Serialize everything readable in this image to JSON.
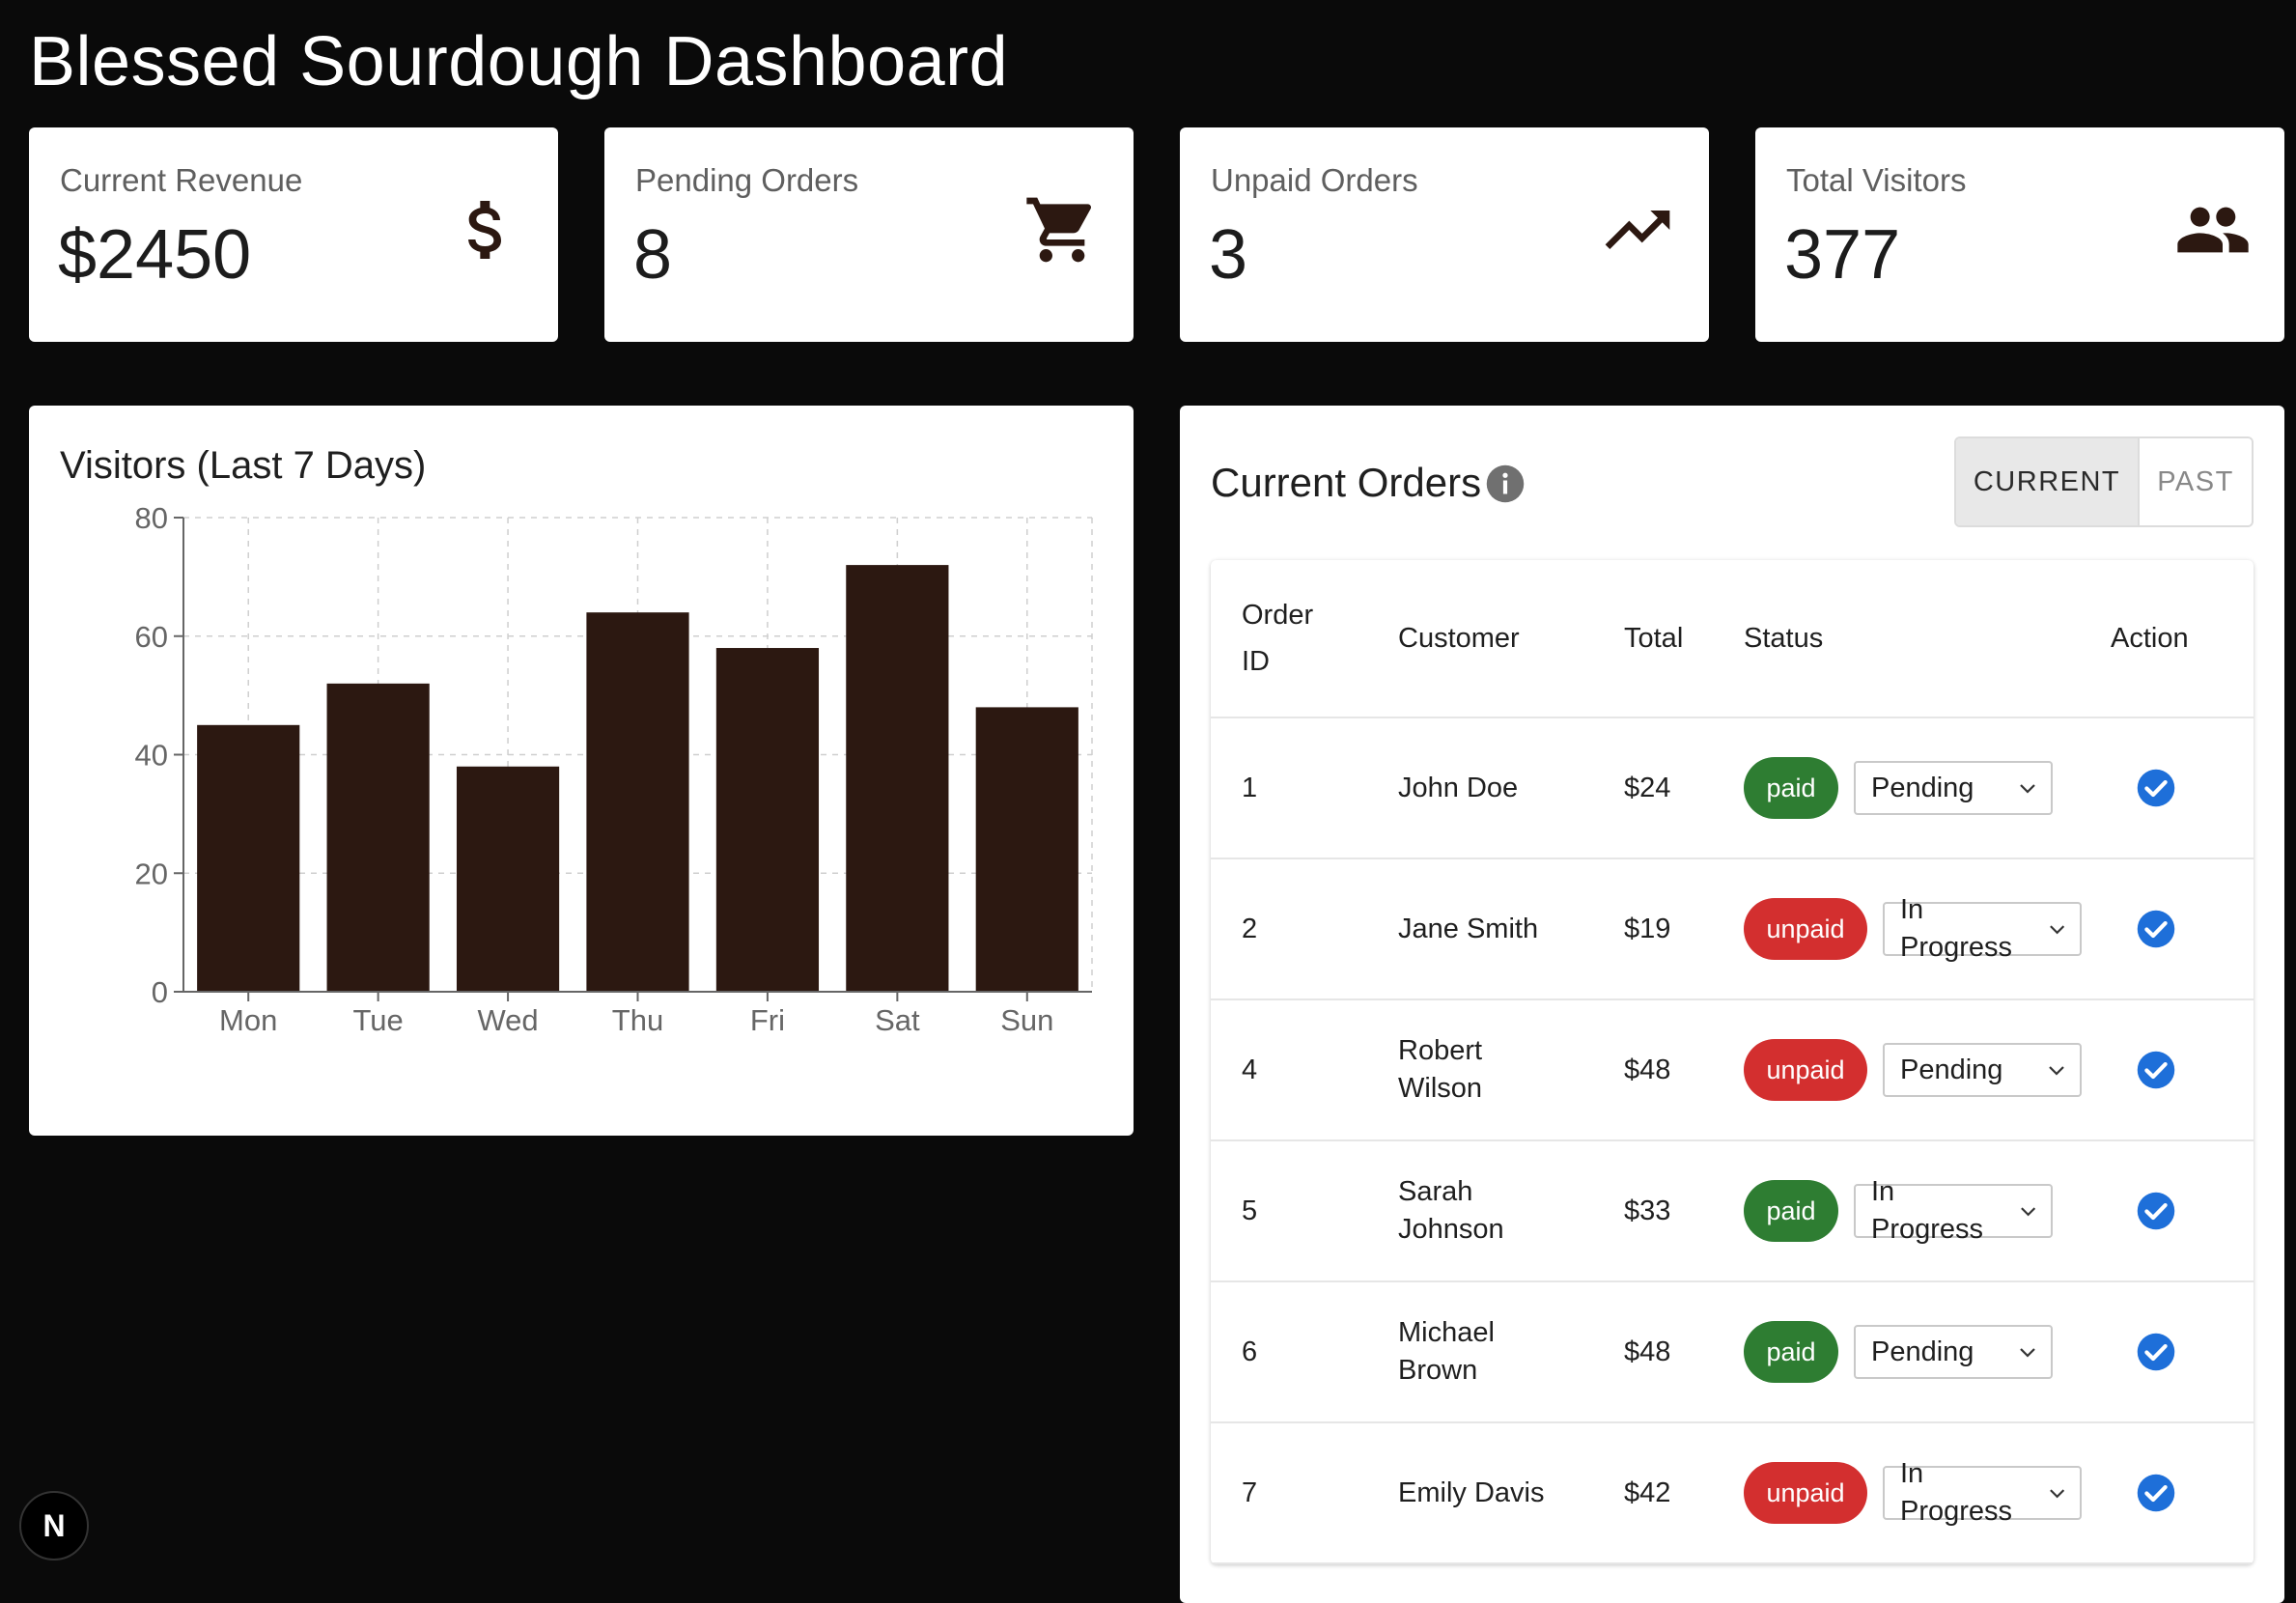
{
  "page": {
    "title": "Blessed Sourdough Dashboard"
  },
  "stats": [
    {
      "label": "Current Revenue",
      "value": "$2450",
      "icon": "dollar-icon"
    },
    {
      "label": "Pending Orders",
      "value": "8",
      "icon": "shopping-cart-icon"
    },
    {
      "label": "Unpaid Orders",
      "value": "3",
      "icon": "trending-up-icon"
    },
    {
      "label": "Total Visitors",
      "value": "377",
      "icon": "people-icon"
    }
  ],
  "visitors_chart": {
    "title": "Visitors (Last 7 Days)"
  },
  "chart_data": {
    "type": "bar",
    "title": "Visitors (Last 7 Days)",
    "categories": [
      "Mon",
      "Tue",
      "Wed",
      "Thu",
      "Fri",
      "Sat",
      "Sun"
    ],
    "values": [
      45,
      52,
      38,
      64,
      58,
      72,
      48
    ],
    "ylim": [
      0,
      80
    ],
    "yticks": [
      0,
      20,
      40,
      60,
      80
    ],
    "xlabel": "",
    "ylabel": "",
    "grid": true,
    "bar_color": "#2c1811"
  },
  "orders": {
    "title": "Current Orders",
    "info_icon": "info-icon",
    "toggle": {
      "current": "CURRENT",
      "past": "PAST",
      "selected": "CURRENT"
    },
    "columns": {
      "id": "Order ID",
      "customer": "Customer",
      "total": "Total",
      "status": "Status",
      "action": "Action"
    },
    "rows": [
      {
        "id": "1",
        "customer": "John Doe",
        "total": "$24",
        "payment": "paid",
        "progress": "Pending"
      },
      {
        "id": "2",
        "customer": "Jane Smith",
        "total": "$19",
        "payment": "unpaid",
        "progress": "In Progress"
      },
      {
        "id": "4",
        "customer": "Robert Wilson",
        "total": "$48",
        "payment": "unpaid",
        "progress": "Pending"
      },
      {
        "id": "5",
        "customer": "Sarah Johnson",
        "total": "$33",
        "payment": "paid",
        "progress": "In Progress"
      },
      {
        "id": "6",
        "customer": "Michael Brown",
        "total": "$48",
        "payment": "paid",
        "progress": "Pending"
      },
      {
        "id": "7",
        "customer": "Emily Davis",
        "total": "$42",
        "payment": "unpaid",
        "progress": "In Progress"
      }
    ]
  },
  "colors": {
    "background": "#0a0a0a",
    "paid": "#2e7d32",
    "unpaid": "#d32f2f",
    "check": "#1e6fd9",
    "icon": "#2c1811"
  },
  "dev_badge": {
    "label": "N"
  }
}
